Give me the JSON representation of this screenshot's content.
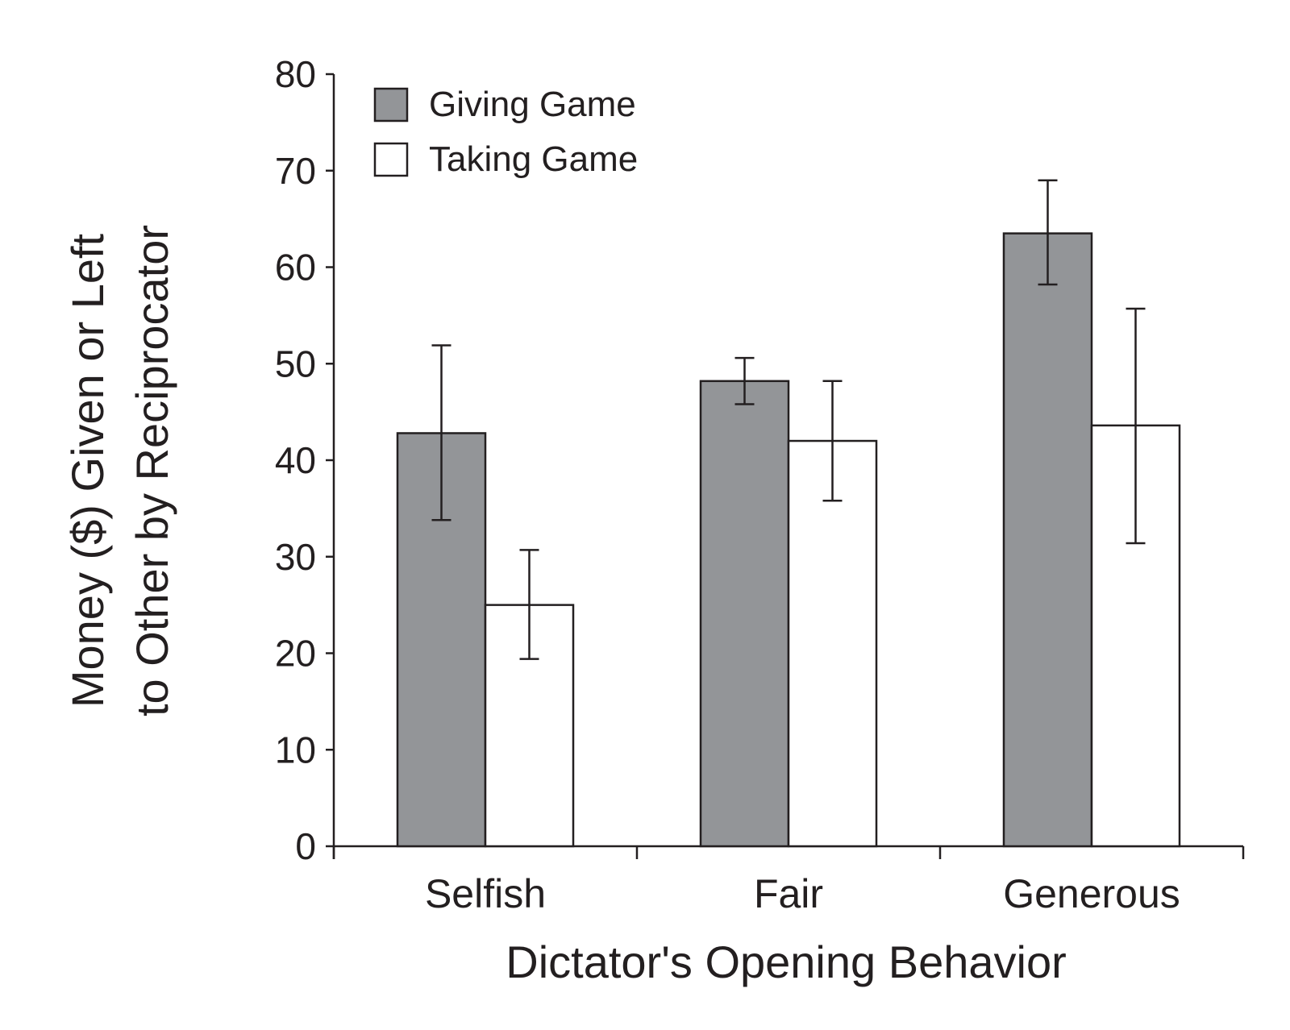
{
  "chart_data": {
    "type": "bar",
    "title": "",
    "xlabel": "Dictator's Opening Behavior",
    "ylabel_lines": [
      "Money ($) Given or Left",
      "to Other by Reciprocator"
    ],
    "ylim": [
      0,
      80
    ],
    "yticks": [
      0,
      10,
      20,
      30,
      40,
      50,
      60,
      70,
      80
    ],
    "categories": [
      "Selfish",
      "Fair",
      "Generous"
    ],
    "series": [
      {
        "name": "Giving Game",
        "color": "#939598",
        "values": [
          42.8,
          48.2,
          63.5
        ],
        "error_low": [
          33.8,
          45.8,
          58.2
        ],
        "error_high": [
          51.9,
          50.6,
          69.0
        ]
      },
      {
        "name": "Taking Game",
        "color": "#ffffff",
        "values": [
          25.0,
          42.0,
          43.6
        ],
        "error_low": [
          19.4,
          35.8,
          31.4
        ],
        "error_high": [
          30.7,
          48.2,
          55.7
        ]
      }
    ],
    "legend_position": "top-left",
    "grid": false
  }
}
